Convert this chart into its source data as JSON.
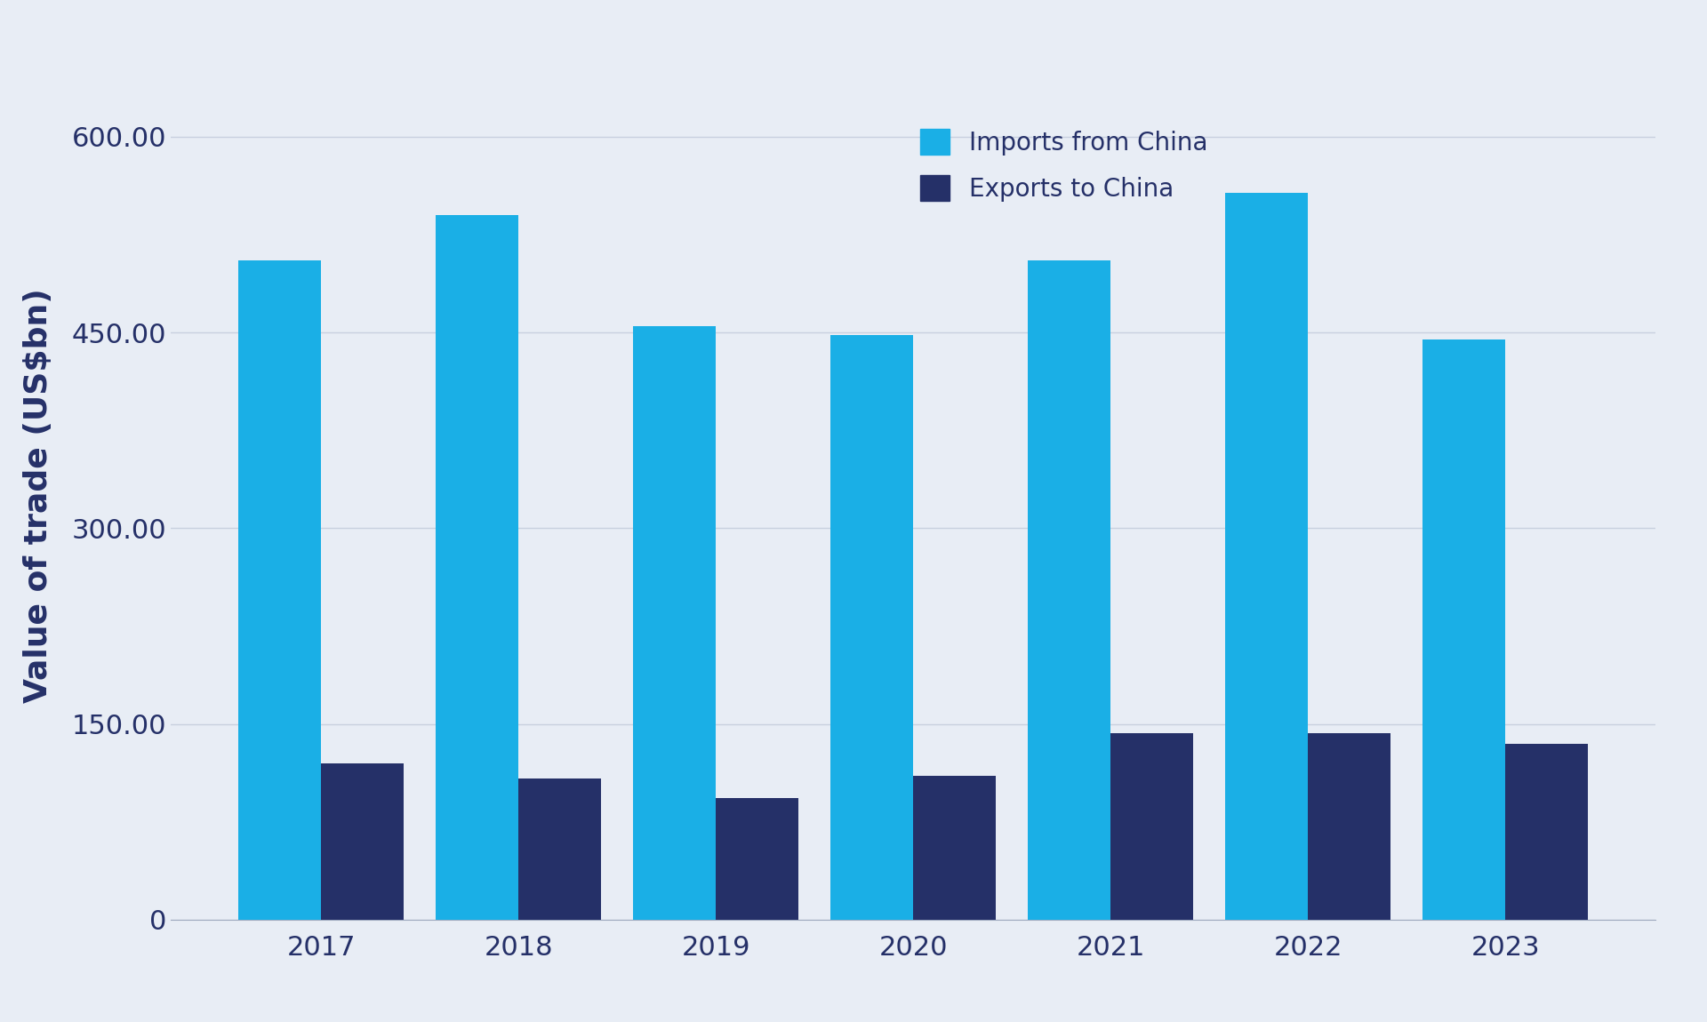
{
  "years": [
    "2017",
    "2018",
    "2019",
    "2020",
    "2021",
    "2022",
    "2023"
  ],
  "imports": [
    505,
    540,
    455,
    448,
    505,
    557,
    445
  ],
  "exports": [
    120,
    108,
    93,
    110,
    143,
    143,
    135
  ],
  "imports_color": "#1AAFE6",
  "exports_color": "#253068",
  "background_color": "#E8EDF5",
  "grid_color": "#C8D0DF",
  "ylabel": "Value of trade (US$bn)",
  "legend_imports": "Imports from China",
  "legend_exports": "Exports to China",
  "ylim": [
    0,
    650
  ],
  "yticks": [
    0,
    150.0,
    300.0,
    450.0,
    600.0
  ],
  "ytick_labels": [
    "0",
    "150.00",
    "300.00",
    "450.00",
    "600.00"
  ],
  "tick_fontsize": 22,
  "ylabel_fontsize": 26,
  "legend_fontsize": 20,
  "axis_text_color": "#253068"
}
